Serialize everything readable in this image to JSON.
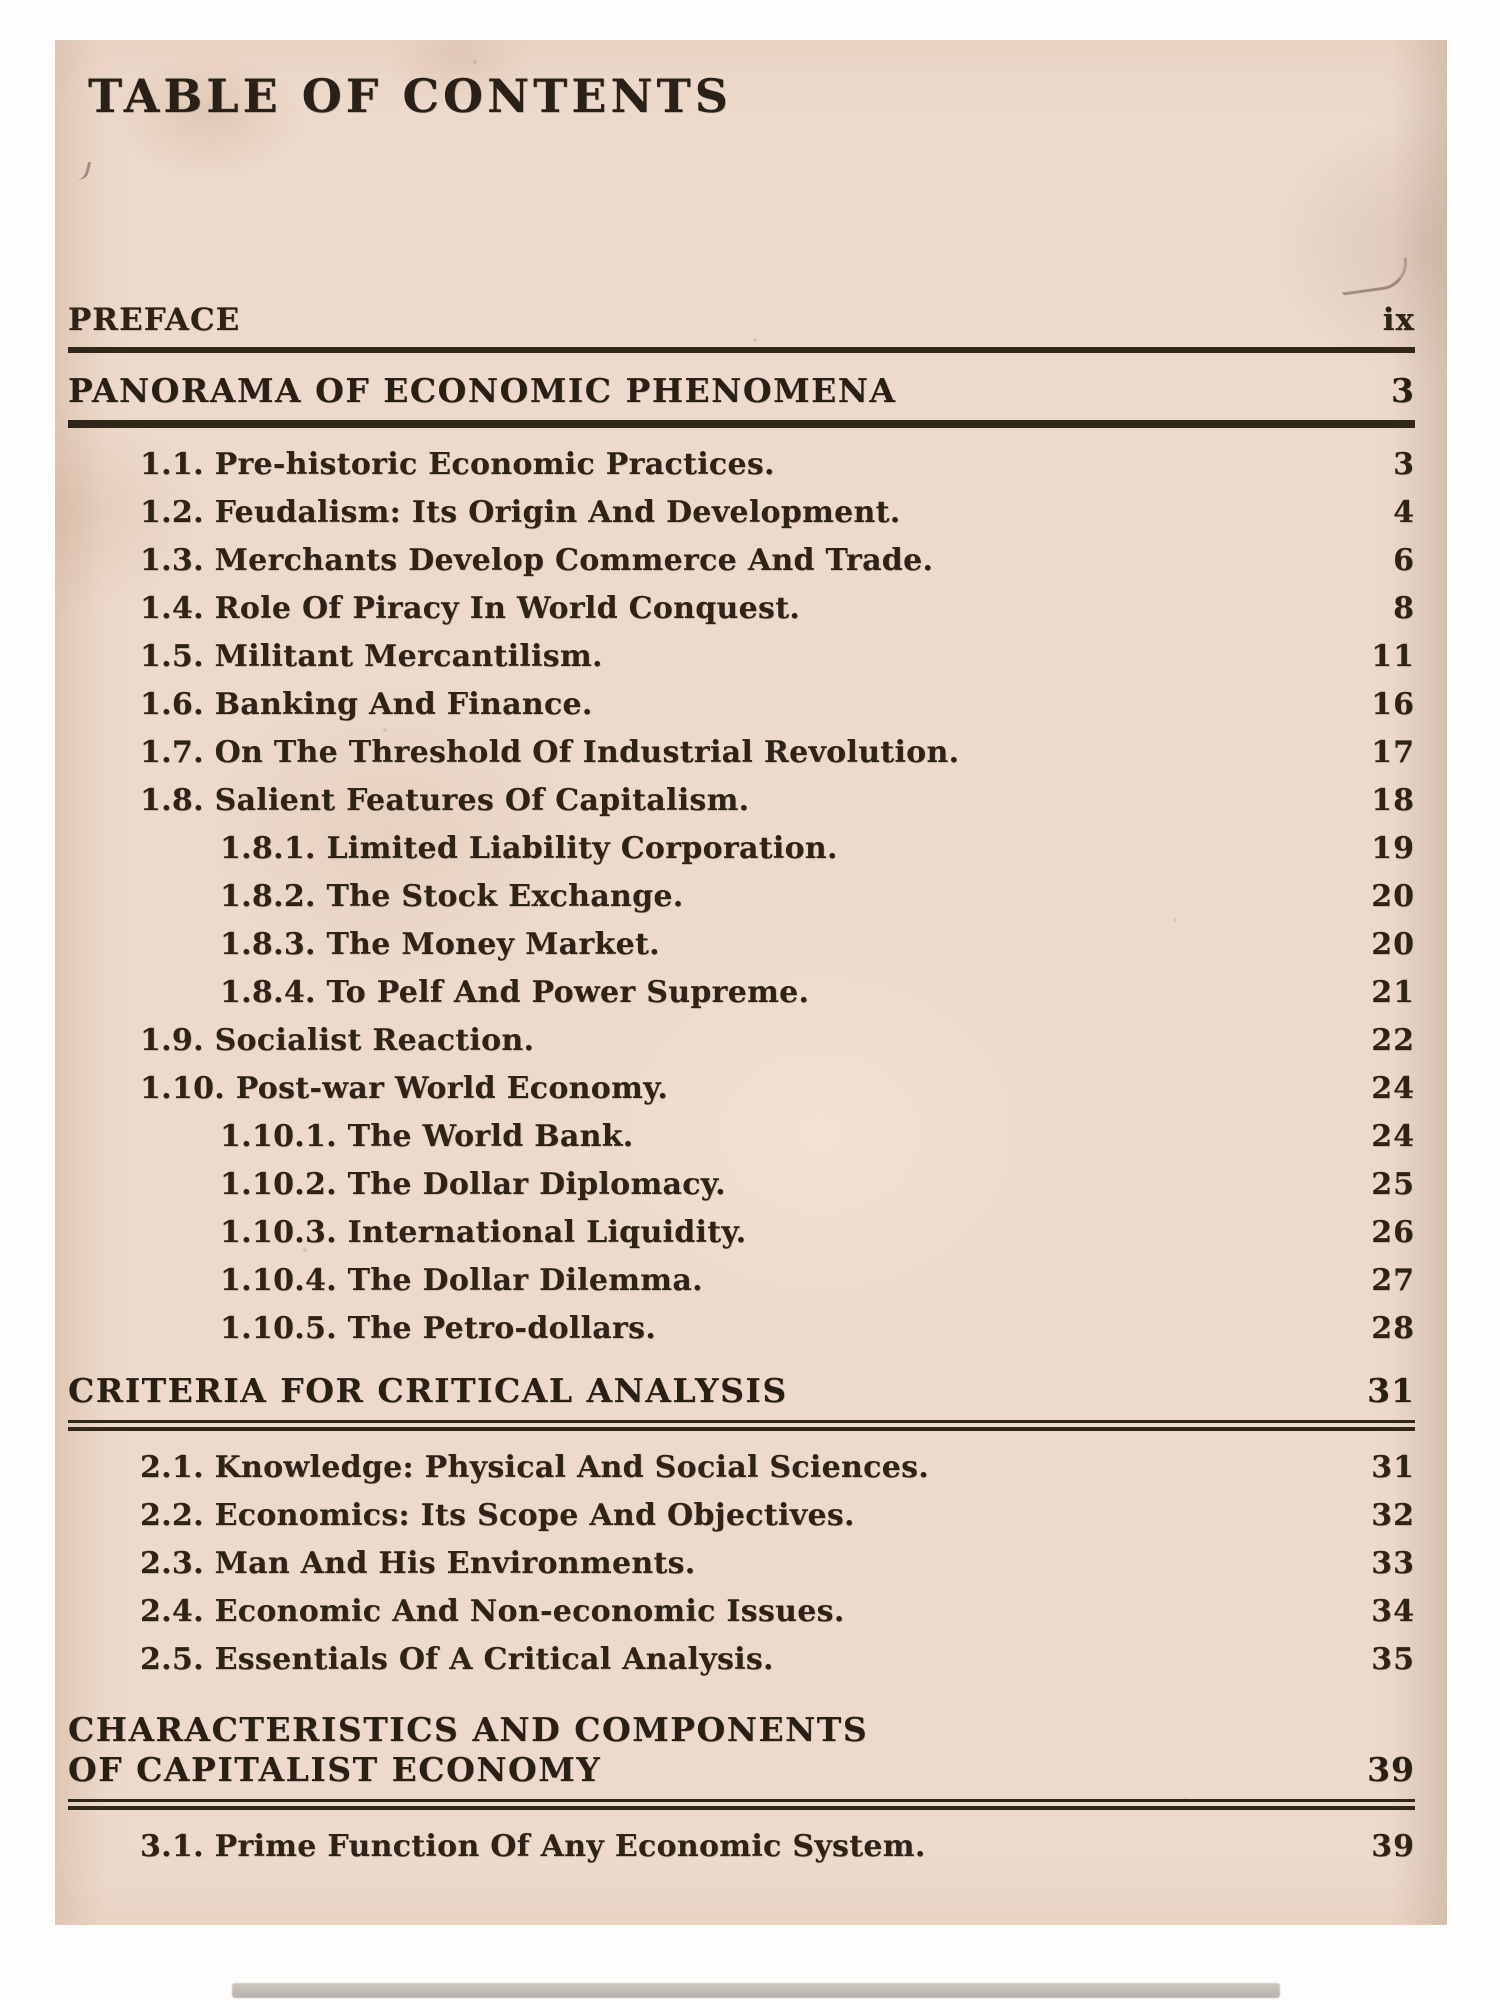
{
  "document": {
    "title": "TABLE OF CONTENTS",
    "preface": {
      "label": "PREFACE",
      "page": "ix"
    },
    "sections": [
      {
        "heading_lines": [
          "PANORAMA OF ECONOMIC PHENOMENA"
        ],
        "page": "3",
        "rule": "thick",
        "items": [
          {
            "level": 1,
            "text": "1.1. Pre-historic Economic Practices.",
            "page": "3"
          },
          {
            "level": 1,
            "text": "1.2. Feudalism: Its Origin And Development.",
            "page": "4"
          },
          {
            "level": 1,
            "text": "1.3. Merchants Develop Commerce And Trade.",
            "page": "6"
          },
          {
            "level": 1,
            "text": "1.4. Role Of Piracy In World Conquest.",
            "page": "8"
          },
          {
            "level": 1,
            "text": "1.5. Militant Mercantilism.",
            "page": "11"
          },
          {
            "level": 1,
            "text": "1.6. Banking And Finance.",
            "page": "16"
          },
          {
            "level": 1,
            "text": "1.7. On The Threshold Of Industrial Revolution.",
            "page": "17"
          },
          {
            "level": 1,
            "text": "1.8. Salient Features Of Capitalism.",
            "page": "18"
          },
          {
            "level": 2,
            "text": "1.8.1. Limited Liability Corporation.",
            "page": "19"
          },
          {
            "level": 2,
            "text": "1.8.2. The Stock Exchange.",
            "page": "20"
          },
          {
            "level": 2,
            "text": "1.8.3. The Money Market.",
            "page": "20"
          },
          {
            "level": 2,
            "text": "1.8.4. To Pelf And Power Supreme.",
            "page": "21"
          },
          {
            "level": 1,
            "text": "1.9. Socialist Reaction.",
            "page": "22"
          },
          {
            "level": 1,
            "text": "1.10. Post-war World Economy.",
            "page": "24"
          },
          {
            "level": 2,
            "text": "1.10.1. The World Bank.",
            "page": "24"
          },
          {
            "level": 2,
            "text": "1.10.2. The Dollar Diplomacy.",
            "page": "25"
          },
          {
            "level": 2,
            "text": "1.10.3. International Liquidity.",
            "page": "26"
          },
          {
            "level": 2,
            "text": "1.10.4. The Dollar Dilemma.",
            "page": "27"
          },
          {
            "level": 2,
            "text": "1.10.5. The Petro-dollars.",
            "page": "28"
          }
        ]
      },
      {
        "heading_lines": [
          "CRITERIA FOR CRITICAL ANALYSIS"
        ],
        "page": "31",
        "rule": "double",
        "items": [
          {
            "level": 1,
            "text": "2.1. Knowledge: Physical And Social Sciences.",
            "page": "31"
          },
          {
            "level": 1,
            "text": "2.2. Economics: Its Scope And Objectives.",
            "page": "32"
          },
          {
            "level": 1,
            "text": "2.3. Man And His Environments.",
            "page": "33"
          },
          {
            "level": 1,
            "text": "2.4. Economic And Non-economic Issues.",
            "page": "34"
          },
          {
            "level": 1,
            "text": "2.5. Essentials Of A Critical Analysis.",
            "page": "35"
          }
        ]
      },
      {
        "heading_lines": [
          "CHARACTERISTICS AND COMPONENTS",
          "OF CAPITALIST ECONOMY"
        ],
        "page": "39",
        "rule": "double",
        "items": [
          {
            "level": 1,
            "text": "3.1. Prime Function Of Any Economic System.",
            "page": "39"
          }
        ]
      }
    ],
    "colors": {
      "paper": "#eddacc",
      "ink": "#2f2318",
      "scan_margin": "#fdfdfc"
    }
  }
}
